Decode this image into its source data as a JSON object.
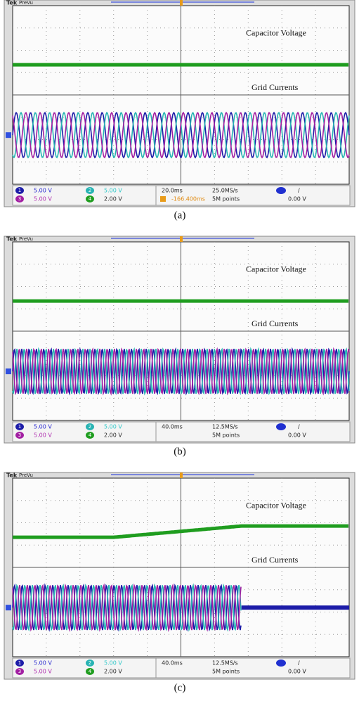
{
  "panels": [
    {
      "brand": "Tek",
      "mode": "PreVu",
      "labels": [
        "Capacitor Voltage",
        "Grid Currents"
      ],
      "channels": [
        {
          "number": "1",
          "scale": "5.00 V"
        },
        {
          "number": "2",
          "scale": "5.00 V"
        },
        {
          "number": "3",
          "scale": "5.00 V"
        },
        {
          "number": "4",
          "scale": "2.00 V"
        }
      ],
      "timebase": "20.0ms",
      "sample_rate": "25.0MS/s",
      "record": "5M points",
      "trigger_slope": "/",
      "trigger_level": "0.00 V",
      "trigger_offset": "-166.400ms",
      "caption": "(a)"
    },
    {
      "brand": "Tek",
      "mode": "PreVu",
      "labels": [
        "Capacitor Voltage",
        "Grid Currents"
      ],
      "channels": [
        {
          "number": "1",
          "scale": "5.00 V"
        },
        {
          "number": "2",
          "scale": "5.00 V"
        },
        {
          "number": "3",
          "scale": "5.00 V"
        },
        {
          "number": "4",
          "scale": "2.00 V"
        }
      ],
      "timebase": "40.0ms",
      "sample_rate": "12.5MS/s",
      "record": "5M points",
      "trigger_slope": "/",
      "trigger_level": "0.00 V",
      "caption": "(b)"
    },
    {
      "brand": "Tek",
      "mode": "PreVu",
      "labels": [
        "Capacitor Voltage",
        "Grid Currents"
      ],
      "channels": [
        {
          "number": "1",
          "scale": "5.00 V"
        },
        {
          "number": "2",
          "scale": "5.00 V"
        },
        {
          "number": "3",
          "scale": "5.00 V"
        },
        {
          "number": "4",
          "scale": "2.00 V"
        }
      ],
      "timebase": "40.0ms",
      "sample_rate": "12.5MS/s",
      "record": "5M points",
      "trigger_slope": "/",
      "trigger_level": "0.00 V",
      "caption": "(c)"
    }
  ]
}
